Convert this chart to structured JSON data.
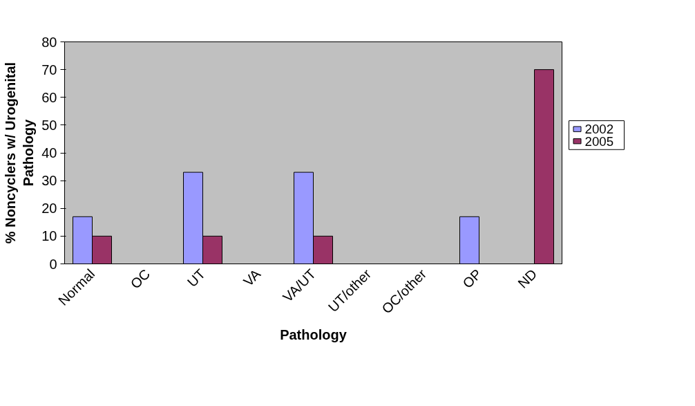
{
  "chart_data": {
    "type": "bar",
    "xlabel": "Pathology",
    "ylabel": "% Noncyclers w/ Urogenital\nPathology",
    "categories": [
      "Normal",
      "OC",
      "UT",
      "VA",
      "VA/UT",
      "UT/other",
      "OC/other",
      "OP",
      "ND"
    ],
    "series": [
      {
        "name": "2002",
        "color": "#9999ff",
        "values": [
          17,
          0,
          33,
          0,
          33,
          0,
          0,
          17,
          0
        ]
      },
      {
        "name": "2005",
        "color": "#993366",
        "values": [
          10,
          0,
          10,
          0,
          10,
          0,
          0,
          0,
          70
        ]
      }
    ],
    "ylim": [
      0,
      80
    ],
    "yticks": [
      0,
      10,
      20,
      30,
      40,
      50,
      60,
      70,
      80
    ],
    "grid": false,
    "legend": "right"
  }
}
